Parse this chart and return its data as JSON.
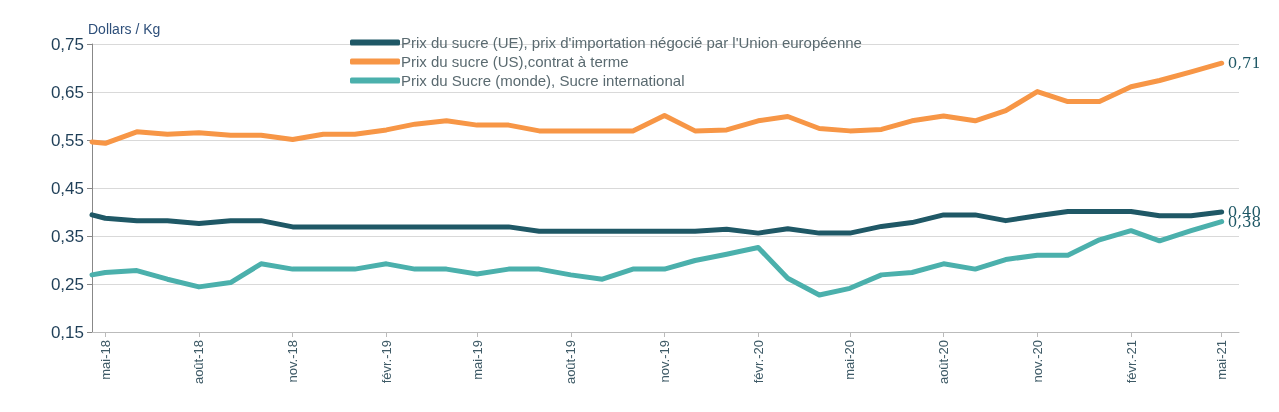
{
  "chart_data": {
    "type": "line",
    "ylabel": "Dollars / Kg",
    "x": [
      "2018-04-18",
      "2018-05",
      "2018-06",
      "2018-07",
      "2018-08",
      "2018-09",
      "2018-10",
      "2018-11",
      "2018-12",
      "2019-01",
      "2019-02",
      "2019-03",
      "2019-04",
      "2019-05",
      "2019-06",
      "2019-07",
      "2019-08",
      "2019-09",
      "2019-10",
      "2019-11",
      "2019-12",
      "2020-01",
      "2020-02",
      "2020-03",
      "2020-04",
      "2020-05",
      "2020-06",
      "2020-07",
      "2020-08",
      "2020-09",
      "2020-10",
      "2020-11",
      "2020-12",
      "2021-01",
      "2021-02",
      "2021-03",
      "2021-04",
      "2021-05"
    ],
    "series": [
      {
        "name": "Prix du sucre (UE), prix d'importation négocié par l'Union européenne",
        "color": "#1f5866",
        "values": [
          0.394,
          0.387,
          0.382,
          0.382,
          0.376,
          0.382,
          0.382,
          0.369,
          0.369,
          0.369,
          0.369,
          0.369,
          0.369,
          0.369,
          0.369,
          0.36,
          0.36,
          0.36,
          0.36,
          0.36,
          0.36,
          0.364,
          0.356,
          0.365,
          0.356,
          0.356,
          0.37,
          0.378,
          0.394,
          0.394,
          0.382,
          0.392,
          0.401,
          0.401,
          0.401,
          0.392,
          0.392,
          0.4
        ],
        "value_labels": [
          null,
          null,
          null,
          null,
          null,
          null,
          null,
          null,
          null,
          null,
          null,
          null,
          null,
          null,
          null,
          null,
          null,
          null,
          null,
          null,
          null,
          null,
          null,
          null,
          null,
          null,
          null,
          null,
          null,
          null,
          null,
          null,
          null,
          null,
          null,
          null,
          null,
          "0,40"
        ]
      },
      {
        "name": "Prix du sucre (US),contrat à terme",
        "color": "#f79646",
        "values": [
          0.546,
          0.543,
          0.567,
          0.562,
          0.565,
          0.56,
          0.56,
          0.551,
          0.562,
          0.562,
          0.571,
          0.583,
          0.59,
          0.581,
          0.581,
          0.569,
          0.569,
          0.569,
          0.569,
          0.601,
          0.569,
          0.571,
          0.59,
          0.599,
          0.574,
          0.569,
          0.572,
          0.59,
          0.6,
          0.59,
          0.611,
          0.651,
          0.63,
          0.63,
          0.661,
          0.674,
          0.692,
          0.71
        ],
        "value_labels": [
          null,
          null,
          null,
          null,
          null,
          null,
          null,
          null,
          null,
          null,
          null,
          null,
          null,
          null,
          null,
          null,
          null,
          null,
          null,
          null,
          null,
          null,
          null,
          null,
          null,
          null,
          null,
          null,
          null,
          null,
          null,
          null,
          null,
          null,
          null,
          null,
          null,
          "0,71"
        ]
      },
      {
        "name": "Prix du Sucre (monde), Sucre international",
        "color": "#4bb0ac",
        "values": [
          0.269,
          0.274,
          0.278,
          0.26,
          0.244,
          0.253,
          0.292,
          0.281,
          0.281,
          0.281,
          0.292,
          0.281,
          0.281,
          0.271,
          0.281,
          0.281,
          0.269,
          0.26,
          0.281,
          0.281,
          0.299,
          0.312,
          0.326,
          0.262,
          0.227,
          0.241,
          0.269,
          0.274,
          0.292,
          0.281,
          0.301,
          0.31,
          0.31,
          0.342,
          0.361,
          0.34,
          0.361,
          0.38
        ],
        "value_labels": [
          null,
          null,
          null,
          null,
          null,
          null,
          null,
          null,
          null,
          null,
          null,
          null,
          null,
          null,
          null,
          null,
          null,
          null,
          null,
          null,
          null,
          null,
          null,
          null,
          null,
          null,
          null,
          null,
          null,
          null,
          null,
          null,
          null,
          null,
          null,
          null,
          null,
          "0,38"
        ]
      }
    ],
    "xlim": [
      "2018-04-18",
      "2021-05-18"
    ],
    "xticks": [
      {
        "value": "2018-05",
        "label": "mai-18"
      },
      {
        "value": "2018-08",
        "label": "août-18"
      },
      {
        "value": "2018-11",
        "label": "nov.-18"
      },
      {
        "value": "2019-02",
        "label": "févr.-19"
      },
      {
        "value": "2019-05",
        "label": "mai-19"
      },
      {
        "value": "2019-08",
        "label": "août-19"
      },
      {
        "value": "2019-11",
        "label": "nov.-19"
      },
      {
        "value": "2020-02",
        "label": "févr.-20"
      },
      {
        "value": "2020-05",
        "label": "mai-20"
      },
      {
        "value": "2020-08",
        "label": "août-20"
      },
      {
        "value": "2020-11",
        "label": "nov.-20"
      },
      {
        "value": "2021-02",
        "label": "févr.-21"
      },
      {
        "value": "2021-05",
        "label": "mai-21"
      }
    ],
    "ylim": [
      0.15,
      0.75
    ],
    "yticks": [
      {
        "value": 0.15,
        "label": "0,15"
      },
      {
        "value": 0.25,
        "label": "0,25"
      },
      {
        "value": 0.35,
        "label": "0,35"
      },
      {
        "value": 0.45,
        "label": "0,45"
      },
      {
        "value": 0.55,
        "label": "0,55"
      },
      {
        "value": 0.65,
        "label": "0,65"
      },
      {
        "value": 0.75,
        "label": "0,75"
      }
    ],
    "grid": "y",
    "legend": "top",
    "marker": "none",
    "line_style": "solid"
  }
}
